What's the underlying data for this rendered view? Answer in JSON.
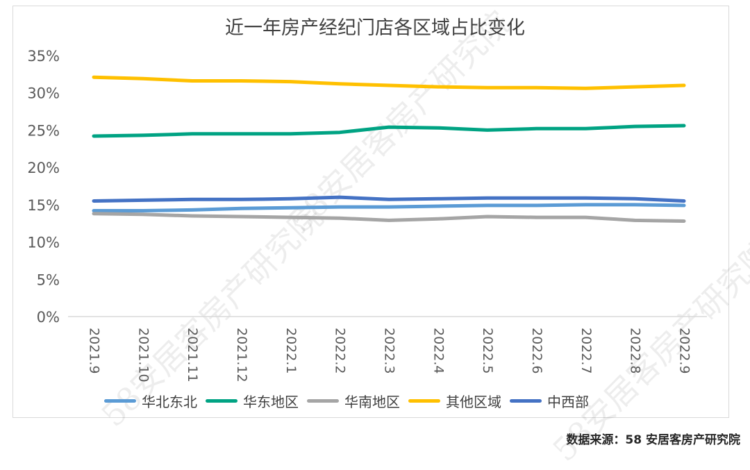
{
  "chart_data": {
    "type": "line",
    "title": "近一年房产经纪门店各区域占比变化",
    "categories": [
      "2021.9",
      "2021.10",
      "2021.11",
      "2021.12",
      "2022.1",
      "2022.2",
      "2022.3",
      "2022.4",
      "2022.5",
      "2022.6",
      "2022.7",
      "2022.8",
      "2022.9"
    ],
    "y_ticks": [
      "0%",
      "5%",
      "10%",
      "15%",
      "20%",
      "25%",
      "30%",
      "35%"
    ],
    "ylim": [
      0,
      35
    ],
    "grid": false,
    "legend_position": "bottom",
    "series": [
      {
        "name": "华北东北",
        "color": "#5b9bd5",
        "values": [
          14.2,
          14.2,
          14.3,
          14.5,
          14.6,
          14.7,
          14.7,
          14.8,
          14.9,
          14.9,
          15.0,
          15.0,
          14.9
        ]
      },
      {
        "name": "华东地区",
        "color": "#00a383",
        "values": [
          24.2,
          24.3,
          24.5,
          24.5,
          24.5,
          24.7,
          25.4,
          25.3,
          25.0,
          25.2,
          25.2,
          25.5,
          25.6
        ]
      },
      {
        "name": "华南地区",
        "color": "#a5a5a5",
        "values": [
          13.8,
          13.7,
          13.5,
          13.4,
          13.3,
          13.2,
          12.9,
          13.1,
          13.4,
          13.3,
          13.3,
          12.9,
          12.8
        ]
      },
      {
        "name": "其他区域",
        "color": "#ffc000",
        "values": [
          32.1,
          31.9,
          31.6,
          31.6,
          31.5,
          31.2,
          31.0,
          30.8,
          30.7,
          30.7,
          30.6,
          30.8,
          31.0
        ]
      },
      {
        "name": "中西部",
        "color": "#4472c4",
        "values": [
          15.5,
          15.6,
          15.7,
          15.7,
          15.8,
          16.0,
          15.7,
          15.8,
          15.9,
          15.9,
          15.9,
          15.8,
          15.5
        ]
      }
    ]
  },
  "source_text": "数据来源：58 安居客房产研究院",
  "watermark_text": "58安居客房产研究院"
}
